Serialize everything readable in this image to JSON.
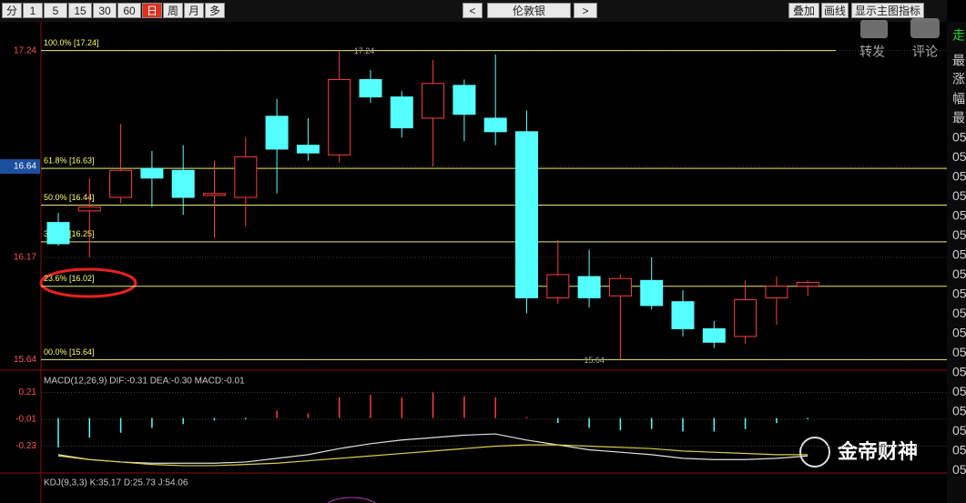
{
  "toolbar": {
    "periods": [
      "分",
      "1",
      "5",
      "15",
      "30",
      "60",
      "日",
      "周",
      "月",
      "多"
    ],
    "active": 6,
    "prev": "<",
    "symbol": "伦敦银",
    "next": ">",
    "tools": [
      "叠加",
      "画线",
      "显示主图指标"
    ]
  },
  "share": {
    "forward": "转发",
    "comment": "评论"
  },
  "side_labels": [
    "走",
    "最",
    "涨",
    "幅",
    "最",
    "05",
    "05",
    "05",
    "05",
    "05",
    "05",
    "05",
    "05",
    "05",
    "05",
    "05",
    "05",
    "05",
    "05",
    "05",
    "05",
    "05",
    "05"
  ],
  "watermark": "金帝财神",
  "kdj_title": "KDJ(9,3,3) K:35.17 D:25.73 J:54.06",
  "chart_data": [
    {
      "type": "candlestick",
      "open": [
        16.35,
        16.41,
        16.48,
        16.63,
        16.62,
        16.49,
        16.48,
        16.9,
        16.75,
        16.7,
        17.09,
        17.0,
        16.89,
        17.06,
        16.89,
        16.82,
        15.96,
        16.07,
        15.97,
        16.05,
        15.94,
        15.8,
        15.76,
        15.96,
        16.02
      ],
      "high": [
        16.4,
        16.58,
        16.86,
        16.72,
        16.75,
        16.67,
        16.79,
        16.99,
        16.89,
        17.24,
        17.14,
        17.03,
        17.19,
        17.09,
        17.22,
        16.93,
        16.26,
        16.21,
        16.08,
        16.17,
        16.0,
        15.84,
        16.05,
        16.07,
        16.05
      ],
      "low": [
        16.23,
        16.17,
        16.45,
        16.43,
        16.39,
        16.27,
        16.33,
        16.5,
        16.67,
        16.66,
        16.97,
        16.79,
        16.64,
        16.77,
        16.75,
        15.88,
        15.93,
        15.91,
        15.64,
        15.9,
        15.76,
        15.7,
        15.72,
        15.82,
        15.97
      ],
      "close": [
        16.24,
        16.43,
        16.62,
        16.58,
        16.48,
        16.5,
        16.69,
        16.73,
        16.71,
        17.09,
        17.0,
        16.84,
        17.07,
        16.91,
        16.82,
        15.96,
        16.08,
        15.96,
        16.06,
        15.92,
        15.8,
        15.73,
        15.95,
        16.02,
        16.04
      ],
      "up_color": "#ff3c3c",
      "down_color": "#54ffff",
      "ylim": [
        15.59,
        17.29
      ],
      "yticks": [
        17.24,
        16.64,
        16.17,
        15.64
      ],
      "highlight_tick": 1,
      "levels": [
        {
          "value": 17.24,
          "label": "100.0% [17.24]"
        },
        {
          "value": 16.63,
          "label": "61.8% [16.63]"
        },
        {
          "value": 16.44,
          "label": "50.0% [16.44]"
        },
        {
          "value": 16.25,
          "label": "38.2% [16.25]"
        },
        {
          "value": 16.02,
          "label": "23.6% [16.02]"
        },
        {
          "value": 15.64,
          "label": "00.0% [15.64]"
        }
      ],
      "level_color": "#e8e870",
      "annotations": [
        {
          "index": 9,
          "value": 17.24,
          "label": "17.24"
        },
        {
          "index": 18,
          "value": 15.64,
          "label": "15.64"
        }
      ]
    },
    {
      "type": "macd",
      "title": "MACD(12,26,9) DIF:-0.31 DEA:-0.30 MACD:-0.01",
      "ylim": [
        -0.45,
        0.37
      ],
      "yticks": [
        0.21,
        -0.01,
        -0.23
      ],
      "histogram": [
        -0.24,
        -0.16,
        -0.12,
        -0.08,
        -0.05,
        -0.02,
        -0.01,
        0.06,
        0.04,
        0.17,
        0.19,
        0.17,
        0.21,
        0.18,
        0.17,
        0.01,
        -0.04,
        -0.08,
        -0.1,
        -0.09,
        -0.11,
        -0.11,
        -0.09,
        -0.04,
        -0.01
      ],
      "series": [
        {
          "color": "#e0e0e0",
          "values": [
            -0.3,
            -0.34,
            -0.36,
            -0.37,
            -0.37,
            -0.37,
            -0.36,
            -0.33,
            -0.3,
            -0.25,
            -0.21,
            -0.18,
            -0.16,
            -0.14,
            -0.13,
            -0.18,
            -0.22,
            -0.26,
            -0.28,
            -0.3,
            -0.33,
            -0.34,
            -0.34,
            -0.33,
            -0.31
          ]
        },
        {
          "color": "#d8d040",
          "values": [
            -0.31,
            -0.34,
            -0.36,
            -0.38,
            -0.39,
            -0.39,
            -0.38,
            -0.37,
            -0.35,
            -0.33,
            -0.31,
            -0.29,
            -0.27,
            -0.25,
            -0.23,
            -0.22,
            -0.22,
            -0.23,
            -0.24,
            -0.25,
            -0.27,
            -0.28,
            -0.29,
            -0.3,
            -0.3
          ]
        }
      ]
    }
  ]
}
